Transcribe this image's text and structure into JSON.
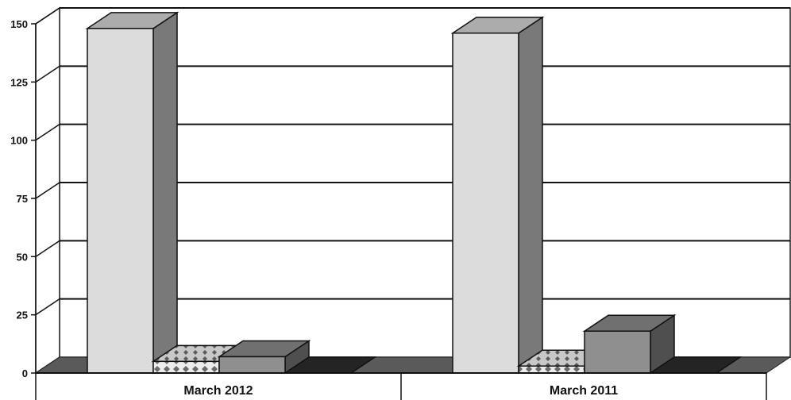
{
  "chart_data": {
    "type": "bar",
    "style": "3d-clustered-column",
    "categories": [
      "March 2012",
      "March 2011"
    ],
    "series": [
      {
        "values": [
          148,
          146
        ],
        "color": "#dcdcdc",
        "pattern": "solid"
      },
      {
        "values": [
          5,
          3
        ],
        "color": "#e6e6e6",
        "pattern": "diamond"
      },
      {
        "values": [
          7,
          18
        ],
        "color": "#8f8f8f",
        "pattern": "solid"
      },
      {
        "values": [
          0,
          0
        ],
        "color": "#2e2e2e",
        "pattern": "solid"
      }
    ],
    "yticks": [
      0,
      25,
      50,
      75,
      100,
      125,
      150
    ],
    "ylim": [
      0,
      150
    ],
    "grid": true,
    "legend": "none"
  }
}
